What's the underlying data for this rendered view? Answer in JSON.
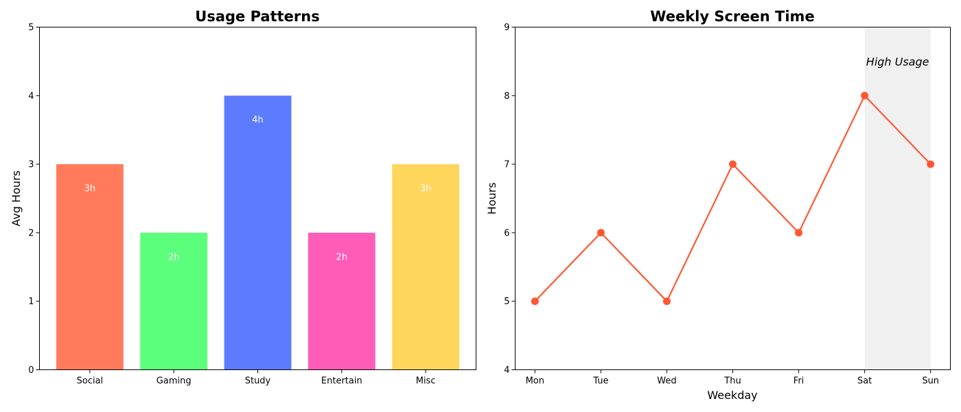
{
  "chart_data": [
    {
      "type": "bar",
      "title": "Usage Patterns",
      "xlabel": "",
      "ylabel": "Avg Hours",
      "ylim": [
        0,
        5
      ],
      "yticks": [
        0,
        1,
        2,
        3,
        4,
        5
      ],
      "categories": [
        "Social",
        "Gaming",
        "Study",
        "Entertain",
        "Misc"
      ],
      "values": [
        3,
        2,
        4,
        2,
        3
      ],
      "data_labels": [
        "3h",
        "2h",
        "4h",
        "2h",
        "3h"
      ],
      "colors": [
        "#ff7b5c",
        "#5cff7b",
        "#5c7bff",
        "#ff5cb8",
        "#ffd65c"
      ],
      "label_color": "#ffffff",
      "grid": false
    },
    {
      "type": "line",
      "title": "Weekly Screen Time",
      "xlabel": "Weekday",
      "ylabel": "Hours",
      "ylim": [
        4,
        9
      ],
      "yticks": [
        4,
        5,
        6,
        7,
        8,
        9
      ],
      "categories": [
        "Mon",
        "Tue",
        "Wed",
        "Thu",
        "Fri",
        "Sat",
        "Sun"
      ],
      "values": [
        5,
        6,
        5,
        7,
        6,
        8,
        7
      ],
      "line_color": "#ff5733",
      "marker": "circle",
      "highlight": {
        "from": "Sat",
        "to": "Sun",
        "label": "High Usage",
        "color": "#f0f0f0"
      },
      "grid": false
    }
  ]
}
